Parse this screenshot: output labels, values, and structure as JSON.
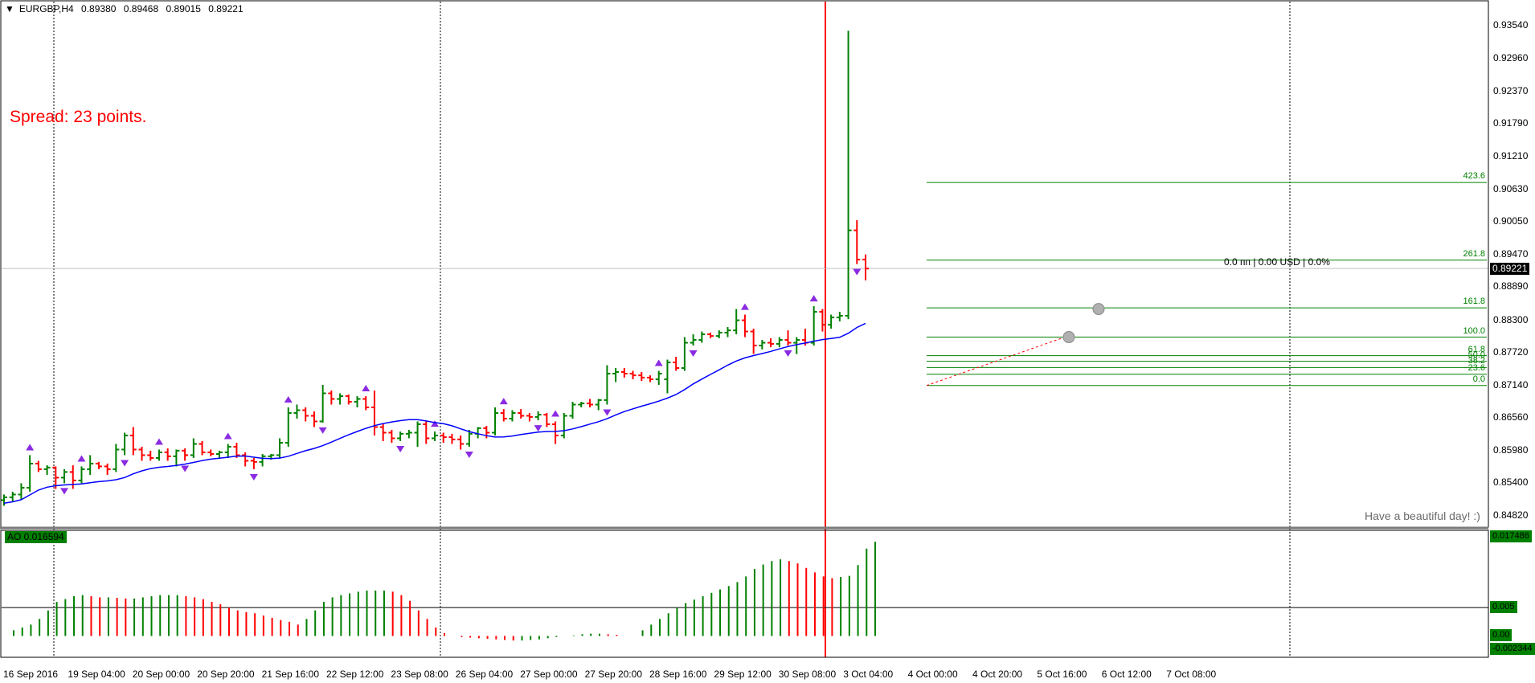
{
  "window": {
    "symbol_label": "EURGBP,H4",
    "open": "0.89380",
    "high": "0.89468",
    "low": "0.89015",
    "close": "0.89221"
  },
  "overlay_text": {
    "spread": "Spread: 23 points.",
    "greeting": "Have a beautiful day! :)",
    "pl_readout": "0.0 пп | 0.00 USD | 0.0%"
  },
  "price_axis": {
    "labels": [
      "0.93540",
      "0.92960",
      "0.92370",
      "0.91790",
      "0.91210",
      "0.90630",
      "0.90050",
      "0.89470",
      "0.88890",
      "0.88300",
      "0.87720",
      "0.87140",
      "0.86560",
      "0.85980",
      "0.85400",
      "0.84820"
    ],
    "current_price_tag": "0.89221"
  },
  "fib_levels": [
    {
      "label": "423.6",
      "price": 0.9075
    },
    {
      "label": "261.8",
      "price": 0.8937
    },
    {
      "label": "161.8",
      "price": 0.8852
    },
    {
      "label": "100.0",
      "price": 0.88
    },
    {
      "label": "61.8",
      "price": 0.8767
    },
    {
      "label": "50.0",
      "price": 0.8757
    },
    {
      "label": "38.2",
      "price": 0.8746
    },
    {
      "label": "23.6",
      "price": 0.8734
    },
    {
      "label": "0.0",
      "price": 0.8714
    }
  ],
  "indicator": {
    "name_value": "AO 0.016594",
    "axis_labels": [
      "0.017486",
      "0.005",
      "0.00",
      "-0.002344"
    ]
  },
  "time_axis": {
    "labels": [
      "16 Sep 2016",
      "19 Sep 04:00",
      "20 Sep 00:00",
      "20 Sep 20:00",
      "21 Sep 16:00",
      "22 Sep 12:00",
      "23 Sep 08:00",
      "26 Sep 04:00",
      "27 Sep 00:00",
      "27 Sep 20:00",
      "28 Sep 16:00",
      "29 Sep 12:00",
      "30 Sep 08:00",
      "3 Oct 04:00",
      "4 Oct 00:00",
      "4 Oct 20:00",
      "5 Oct 16:00",
      "6 Oct 12:00",
      "7 Oct 08:00"
    ]
  },
  "colors": {
    "up": "#008000",
    "down": "#ff0000",
    "ma": "#0000ff",
    "fractal": "#8a2be2",
    "vline": "#ff0000",
    "fib": "#008000",
    "ao_bg": "#008000"
  },
  "chart_data": {
    "type": "candlestick",
    "series_ohlc": [
      {
        "o": 0.851,
        "h": 0.852,
        "l": 0.85,
        "c": 0.8515
      },
      {
        "o": 0.8515,
        "h": 0.8525,
        "l": 0.8508,
        "c": 0.852
      },
      {
        "o": 0.852,
        "h": 0.854,
        "l": 0.851,
        "c": 0.8532
      },
      {
        "o": 0.8532,
        "h": 0.859,
        "l": 0.8525,
        "c": 0.8575
      },
      {
        "o": 0.8575,
        "h": 0.858,
        "l": 0.856,
        "c": 0.8565
      },
      {
        "o": 0.8565,
        "h": 0.8572,
        "l": 0.8555,
        "c": 0.8568
      },
      {
        "o": 0.8568,
        "h": 0.857,
        "l": 0.853,
        "c": 0.855
      },
      {
        "o": 0.855,
        "h": 0.8565,
        "l": 0.854,
        "c": 0.856
      },
      {
        "o": 0.856,
        "h": 0.8572,
        "l": 0.853,
        "c": 0.8545
      },
      {
        "o": 0.8545,
        "h": 0.857,
        "l": 0.854,
        "c": 0.8565
      },
      {
        "o": 0.8565,
        "h": 0.859,
        "l": 0.8555,
        "c": 0.8575
      },
      {
        "o": 0.8575,
        "h": 0.8578,
        "l": 0.8565,
        "c": 0.857
      },
      {
        "o": 0.857,
        "h": 0.8575,
        "l": 0.8555,
        "c": 0.8565
      },
      {
        "o": 0.8565,
        "h": 0.861,
        "l": 0.856,
        "c": 0.86
      },
      {
        "o": 0.86,
        "h": 0.863,
        "l": 0.859,
        "c": 0.8625
      },
      {
        "o": 0.8625,
        "h": 0.864,
        "l": 0.859,
        "c": 0.86
      },
      {
        "o": 0.86,
        "h": 0.8605,
        "l": 0.858,
        "c": 0.859
      },
      {
        "o": 0.859,
        "h": 0.8598,
        "l": 0.858,
        "c": 0.8585
      },
      {
        "o": 0.8585,
        "h": 0.86,
        "l": 0.858,
        "c": 0.8595
      },
      {
        "o": 0.8595,
        "h": 0.8602,
        "l": 0.858,
        "c": 0.8588
      },
      {
        "o": 0.8588,
        "h": 0.86,
        "l": 0.857,
        "c": 0.8598
      },
      {
        "o": 0.8598,
        "h": 0.8602,
        "l": 0.858,
        "c": 0.859
      },
      {
        "o": 0.859,
        "h": 0.862,
        "l": 0.8585,
        "c": 0.861
      },
      {
        "o": 0.861,
        "h": 0.8615,
        "l": 0.859,
        "c": 0.8595
      },
      {
        "o": 0.8595,
        "h": 0.86,
        "l": 0.8588,
        "c": 0.8592
      },
      {
        "o": 0.8592,
        "h": 0.8598,
        "l": 0.8585,
        "c": 0.8595
      },
      {
        "o": 0.8595,
        "h": 0.861,
        "l": 0.8585,
        "c": 0.8605
      },
      {
        "o": 0.8605,
        "h": 0.8612,
        "l": 0.8585,
        "c": 0.859
      },
      {
        "o": 0.859,
        "h": 0.8595,
        "l": 0.857,
        "c": 0.858
      },
      {
        "o": 0.858,
        "h": 0.8585,
        "l": 0.8565,
        "c": 0.8578
      },
      {
        "o": 0.8578,
        "h": 0.8592,
        "l": 0.857,
        "c": 0.8588
      },
      {
        "o": 0.8588,
        "h": 0.8592,
        "l": 0.8582,
        "c": 0.859
      },
      {
        "o": 0.859,
        "h": 0.862,
        "l": 0.8585,
        "c": 0.8612
      },
      {
        "o": 0.8612,
        "h": 0.8675,
        "l": 0.8605,
        "c": 0.8665
      },
      {
        "o": 0.8665,
        "h": 0.868,
        "l": 0.8655,
        "c": 0.867
      },
      {
        "o": 0.867,
        "h": 0.8675,
        "l": 0.865,
        "c": 0.866
      },
      {
        "o": 0.866,
        "h": 0.8668,
        "l": 0.864,
        "c": 0.865
      },
      {
        "o": 0.865,
        "h": 0.8715,
        "l": 0.8648,
        "c": 0.87
      },
      {
        "o": 0.87,
        "h": 0.8705,
        "l": 0.868,
        "c": 0.869
      },
      {
        "o": 0.869,
        "h": 0.87,
        "l": 0.868,
        "c": 0.8695
      },
      {
        "o": 0.8695,
        "h": 0.8698,
        "l": 0.868,
        "c": 0.8685
      },
      {
        "o": 0.8685,
        "h": 0.8695,
        "l": 0.8675,
        "c": 0.869
      },
      {
        "o": 0.869,
        "h": 0.8695,
        "l": 0.867,
        "c": 0.8675
      },
      {
        "o": 0.8675,
        "h": 0.8705,
        "l": 0.8625,
        "c": 0.864
      },
      {
        "o": 0.864,
        "h": 0.8645,
        "l": 0.8615,
        "c": 0.863
      },
      {
        "o": 0.863,
        "h": 0.8635,
        "l": 0.8612,
        "c": 0.862
      },
      {
        "o": 0.862,
        "h": 0.8632,
        "l": 0.8615,
        "c": 0.8628
      },
      {
        "o": 0.8628,
        "h": 0.8635,
        "l": 0.862,
        "c": 0.863
      },
      {
        "o": 0.863,
        "h": 0.865,
        "l": 0.8605,
        "c": 0.8645
      },
      {
        "o": 0.8645,
        "h": 0.865,
        "l": 0.861,
        "c": 0.862
      },
      {
        "o": 0.862,
        "h": 0.8632,
        "l": 0.8615,
        "c": 0.8625
      },
      {
        "o": 0.8625,
        "h": 0.863,
        "l": 0.8612,
        "c": 0.8622
      },
      {
        "o": 0.8622,
        "h": 0.8628,
        "l": 0.861,
        "c": 0.8618
      },
      {
        "o": 0.8618,
        "h": 0.8625,
        "l": 0.86,
        "c": 0.861
      },
      {
        "o": 0.861,
        "h": 0.8635,
        "l": 0.8605,
        "c": 0.8628
      },
      {
        "o": 0.8628,
        "h": 0.864,
        "l": 0.862,
        "c": 0.8638
      },
      {
        "o": 0.8638,
        "h": 0.8642,
        "l": 0.862,
        "c": 0.863
      },
      {
        "o": 0.863,
        "h": 0.8675,
        "l": 0.8625,
        "c": 0.8665
      },
      {
        "o": 0.8665,
        "h": 0.8672,
        "l": 0.865,
        "c": 0.8655
      },
      {
        "o": 0.8655,
        "h": 0.867,
        "l": 0.865,
        "c": 0.8665
      },
      {
        "o": 0.8665,
        "h": 0.8672,
        "l": 0.8655,
        "c": 0.866
      },
      {
        "o": 0.866,
        "h": 0.8665,
        "l": 0.865,
        "c": 0.8658
      },
      {
        "o": 0.8658,
        "h": 0.8668,
        "l": 0.8652,
        "c": 0.8662
      },
      {
        "o": 0.8662,
        "h": 0.8665,
        "l": 0.864,
        "c": 0.8645
      },
      {
        "o": 0.8645,
        "h": 0.865,
        "l": 0.861,
        "c": 0.8625
      },
      {
        "o": 0.8625,
        "h": 0.8665,
        "l": 0.862,
        "c": 0.866
      },
      {
        "o": 0.866,
        "h": 0.8685,
        "l": 0.8655,
        "c": 0.868
      },
      {
        "o": 0.868,
        "h": 0.8685,
        "l": 0.8675,
        "c": 0.8682
      },
      {
        "o": 0.8682,
        "h": 0.869,
        "l": 0.8675,
        "c": 0.868
      },
      {
        "o": 0.868,
        "h": 0.869,
        "l": 0.867,
        "c": 0.8688
      },
      {
        "o": 0.8688,
        "h": 0.875,
        "l": 0.868,
        "c": 0.8735
      },
      {
        "o": 0.8735,
        "h": 0.8745,
        "l": 0.872,
        "c": 0.8738
      },
      {
        "o": 0.8738,
        "h": 0.8745,
        "l": 0.8728,
        "c": 0.8735
      },
      {
        "o": 0.8735,
        "h": 0.874,
        "l": 0.8725,
        "c": 0.8732
      },
      {
        "o": 0.8732,
        "h": 0.8738,
        "l": 0.8722,
        "c": 0.8728
      },
      {
        "o": 0.8728,
        "h": 0.8732,
        "l": 0.872,
        "c": 0.8725
      },
      {
        "o": 0.8725,
        "h": 0.874,
        "l": 0.8715,
        "c": 0.8735
      },
      {
        "o": 0.8725,
        "h": 0.876,
        "l": 0.87,
        "c": 0.8755
      },
      {
        "o": 0.8755,
        "h": 0.8765,
        "l": 0.874,
        "c": 0.8745
      },
      {
        "o": 0.8745,
        "h": 0.88,
        "l": 0.874,
        "c": 0.879
      },
      {
        "o": 0.879,
        "h": 0.8805,
        "l": 0.8785,
        "c": 0.8795
      },
      {
        "o": 0.8795,
        "h": 0.881,
        "l": 0.879,
        "c": 0.8805
      },
      {
        "o": 0.8805,
        "h": 0.8808,
        "l": 0.8798,
        "c": 0.8802
      },
      {
        "o": 0.8802,
        "h": 0.8812,
        "l": 0.8798,
        "c": 0.8808
      },
      {
        "o": 0.8808,
        "h": 0.8818,
        "l": 0.88,
        "c": 0.8812
      },
      {
        "o": 0.8812,
        "h": 0.885,
        "l": 0.8805,
        "c": 0.883
      },
      {
        "o": 0.883,
        "h": 0.884,
        "l": 0.88,
        "c": 0.881
      },
      {
        "o": 0.881,
        "h": 0.8815,
        "l": 0.877,
        "c": 0.8785
      },
      {
        "o": 0.8785,
        "h": 0.8795,
        "l": 0.8778,
        "c": 0.879
      },
      {
        "o": 0.879,
        "h": 0.8798,
        "l": 0.8782,
        "c": 0.8788
      },
      {
        "o": 0.8788,
        "h": 0.88,
        "l": 0.8782,
        "c": 0.8795
      },
      {
        "o": 0.8795,
        "h": 0.8812,
        "l": 0.8785,
        "c": 0.879
      },
      {
        "o": 0.879,
        "h": 0.88,
        "l": 0.877,
        "c": 0.8795
      },
      {
        "o": 0.8795,
        "h": 0.8815,
        "l": 0.8785,
        "c": 0.879
      },
      {
        "o": 0.879,
        "h": 0.8855,
        "l": 0.8785,
        "c": 0.8845
      },
      {
        "o": 0.8845,
        "h": 0.885,
        "l": 0.881,
        "c": 0.8822
      },
      {
        "o": 0.8822,
        "h": 0.884,
        "l": 0.8815,
        "c": 0.8835
      },
      {
        "o": 0.8835,
        "h": 0.8845,
        "l": 0.8828,
        "c": 0.8838
      },
      {
        "o": 0.8838,
        "h": 0.9345,
        "l": 0.8832,
        "c": 0.899
      },
      {
        "o": 0.899,
        "h": 0.9008,
        "l": 0.893,
        "c": 0.8938
      },
      {
        "o": 0.8938,
        "h": 0.8947,
        "l": 0.8901,
        "c": 0.8922
      }
    ],
    "moving_average": {
      "start": 0.851,
      "end": 0.8815
    },
    "ao_histogram": [
      0.001,
      0.0015,
      0.002,
      0.003,
      0.0045,
      0.006,
      0.0065,
      0.007,
      0.0072,
      0.007,
      0.0068,
      0.0068,
      0.0067,
      0.0066,
      0.0066,
      0.0068,
      0.007,
      0.0072,
      0.0072,
      0.0072,
      0.007,
      0.0068,
      0.0065,
      0.006,
      0.0056,
      0.005,
      0.0045,
      0.0042,
      0.004,
      0.0036,
      0.0032,
      0.0028,
      0.0025,
      0.002,
      0.003,
      0.0045,
      0.006,
      0.0068,
      0.0072,
      0.0075,
      0.0078,
      0.008,
      0.008,
      0.008,
      0.0078,
      0.0072,
      0.0062,
      0.0045,
      0.003,
      0.0015,
      0.0005,
      0.0,
      -0.0002,
      -0.0003,
      -0.0004,
      -0.0005,
      -0.0006,
      -0.0007,
      -0.0008,
      -0.0008,
      -0.0007,
      -0.0006,
      -0.0004,
      -0.0002,
      0.0,
      0.0001,
      0.0003,
      0.0004,
      0.0004,
      0.0003,
      0.0002,
      0.0,
      0.0,
      0.001,
      0.002,
      0.003,
      0.004,
      0.005,
      0.0058,
      0.0064,
      0.007,
      0.0076,
      0.0082,
      0.0088,
      0.0095,
      0.0105,
      0.0118,
      0.0126,
      0.0132,
      0.0135,
      0.0132,
      0.0128,
      0.012,
      0.0112,
      0.0105,
      0.0102,
      0.0104,
      0.0106,
      0.0125,
      0.0154,
      0.0166
    ],
    "price_range": [
      0.8482,
      0.9354
    ],
    "ao_range": [
      -0.002344,
      0.017486
    ]
  }
}
